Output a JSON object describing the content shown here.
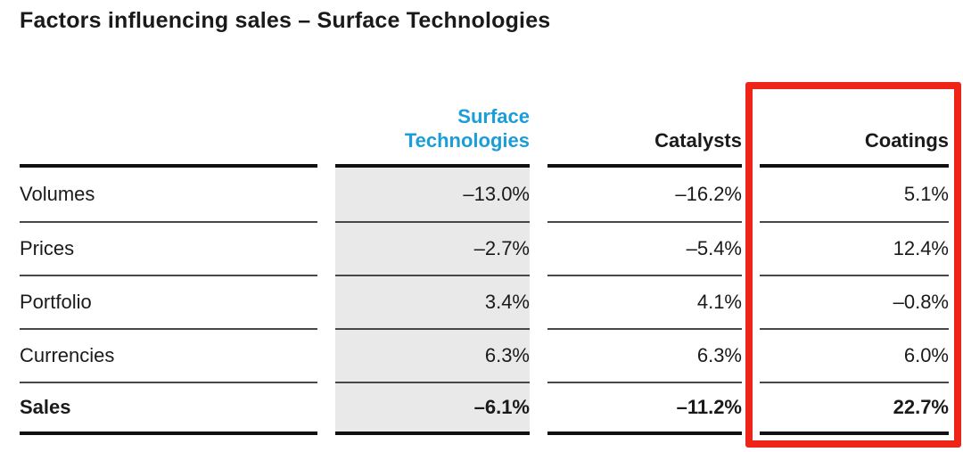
{
  "title": "Factors influencing sales – Surface Technologies",
  "colors": {
    "accent_blue": "#1b9dd9",
    "highlight_red": "#ee2418",
    "column_shade": "#e9e9e9"
  },
  "table": {
    "columns": [
      {
        "label": "Surface Technologies"
      },
      {
        "label": "Catalysts"
      },
      {
        "label": "Coatings"
      }
    ],
    "rows": [
      {
        "label": "Volumes",
        "values": [
          "–13.0%",
          "–16.2%",
          "5.1%"
        ]
      },
      {
        "label": "Prices",
        "values": [
          "–2.7%",
          "–5.4%",
          "12.4%"
        ]
      },
      {
        "label": "Portfolio",
        "values": [
          "3.4%",
          "4.1%",
          "–0.8%"
        ]
      },
      {
        "label": "Currencies",
        "values": [
          "6.3%",
          "6.3%",
          "6.0%"
        ]
      },
      {
        "label": "Sales",
        "values": [
          "–6.1%",
          "–11.2%",
          "22.7%"
        ]
      }
    ]
  },
  "highlight": {
    "target_column": "Coatings"
  }
}
